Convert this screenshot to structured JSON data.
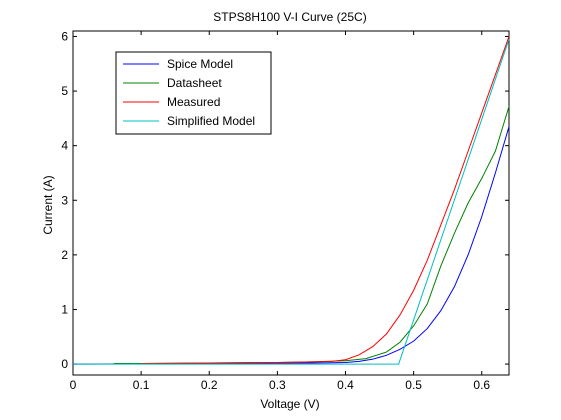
{
  "chart_data": {
    "type": "line",
    "title": "STPS8H100 V-I Curve (25C)",
    "xlabel": "Voltage (V)",
    "ylabel": "Current (A)",
    "xlim": [
      0,
      0.64
    ],
    "ylim": [
      -0.2,
      6.1
    ],
    "xticks": [
      0,
      0.1,
      0.2,
      0.3,
      0.4,
      0.5,
      0.6
    ],
    "xtick_labels": [
      "0",
      "0.1",
      "0.2",
      "0.3",
      "0.4",
      "0.5",
      "0.6"
    ],
    "yticks": [
      0,
      1,
      2,
      3,
      4,
      5,
      6
    ],
    "ytick_labels": [
      "0",
      "1",
      "2",
      "3",
      "4",
      "5",
      "6"
    ],
    "grid": false,
    "legend_position": "top-left",
    "series": [
      {
        "name": "Spice Model",
        "color": "#0000ff",
        "x": [
          0,
          0.05,
          0.1,
          0.15,
          0.2,
          0.25,
          0.3,
          0.35,
          0.38,
          0.4,
          0.42,
          0.44,
          0.46,
          0.48,
          0.5,
          0.52,
          0.54,
          0.56,
          0.58,
          0.6,
          0.62,
          0.64
        ],
        "y": [
          0,
          0.002,
          0.004,
          0.006,
          0.008,
          0.011,
          0.015,
          0.02,
          0.025,
          0.03,
          0.05,
          0.09,
          0.16,
          0.27,
          0.42,
          0.65,
          0.98,
          1.42,
          2.0,
          2.7,
          3.5,
          4.35
        ]
      },
      {
        "name": "Datasheet",
        "color": "#008000",
        "x": [
          0.06,
          0.1,
          0.2,
          0.3,
          0.35,
          0.4,
          0.43,
          0.46,
          0.48,
          0.5,
          0.52,
          0.54,
          0.56,
          0.58,
          0.6,
          0.62,
          0.64
        ],
        "y": [
          0.01,
          0.01,
          0.02,
          0.03,
          0.04,
          0.06,
          0.1,
          0.22,
          0.4,
          0.7,
          1.1,
          1.8,
          2.4,
          2.95,
          3.4,
          3.9,
          4.72
        ]
      },
      {
        "name": "Measured",
        "color": "#ff0000",
        "x": [
          0.1,
          0.2,
          0.3,
          0.35,
          0.38,
          0.4,
          0.42,
          0.44,
          0.46,
          0.48,
          0.5,
          0.52,
          0.54,
          0.56,
          0.58,
          0.6,
          0.62,
          0.64
        ],
        "y": [
          0.01,
          0.02,
          0.03,
          0.04,
          0.05,
          0.08,
          0.17,
          0.32,
          0.55,
          0.9,
          1.35,
          1.9,
          2.55,
          3.2,
          3.9,
          4.6,
          5.3,
          6.0
        ]
      },
      {
        "name": "Simplified Model",
        "color": "#00bfbf",
        "x": [
          0,
          0.478,
          0.64
        ],
        "y": [
          0,
          0,
          5.95
        ]
      }
    ]
  }
}
